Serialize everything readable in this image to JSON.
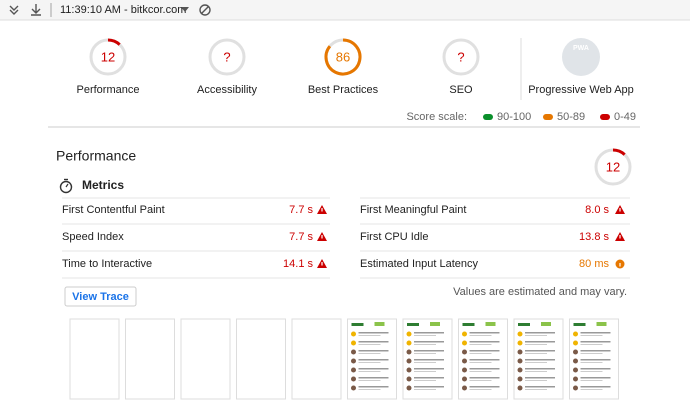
{
  "toolbar": {
    "url_text": "11:39:10 AM - bitkcor.com"
  },
  "gauges": [
    {
      "score": 12,
      "label": "Performance",
      "color": "#cc0000"
    },
    {
      "score": "?",
      "label": "Accessibility",
      "color": "#cc0000"
    },
    {
      "score": 86,
      "label": "Best Practices",
      "color": "#e67700"
    },
    {
      "score": "?",
      "label": "SEO",
      "color": "#cc0000"
    }
  ],
  "pwa": {
    "badge": "PWA",
    "label": "Progressive Web App"
  },
  "score_scale": {
    "label": "Score scale:",
    "ranges": [
      {
        "label": "90-100",
        "color": "#0a8f2b"
      },
      {
        "label": "50-89",
        "color": "#e67700"
      },
      {
        "label": "0-49",
        "color": "#cc0000"
      }
    ]
  },
  "performance": {
    "title": "Performance",
    "score": 12,
    "color": "#cc0000",
    "metrics_heading": "Metrics",
    "metrics": [
      {
        "label": "First Contentful Paint",
        "value": "7.7 s",
        "color": "#cc0000",
        "icon": "warning"
      },
      {
        "label": "Speed Index",
        "value": "7.7 s",
        "color": "#cc0000",
        "icon": "warning"
      },
      {
        "label": "Time to Interactive",
        "value": "14.1 s",
        "color": "#cc0000",
        "icon": "warning"
      },
      {
        "label": "First Meaningful Paint",
        "value": "8.0 s",
        "color": "#cc0000",
        "icon": "warning"
      },
      {
        "label": "First CPU Idle",
        "value": "13.8 s",
        "color": "#cc0000",
        "icon": "warning"
      },
      {
        "label": "Estimated Input Latency",
        "value": "80 ms",
        "color": "#e67700",
        "icon": "info"
      }
    ],
    "button": "View Trace",
    "note": "Values are estimated and may vary."
  }
}
